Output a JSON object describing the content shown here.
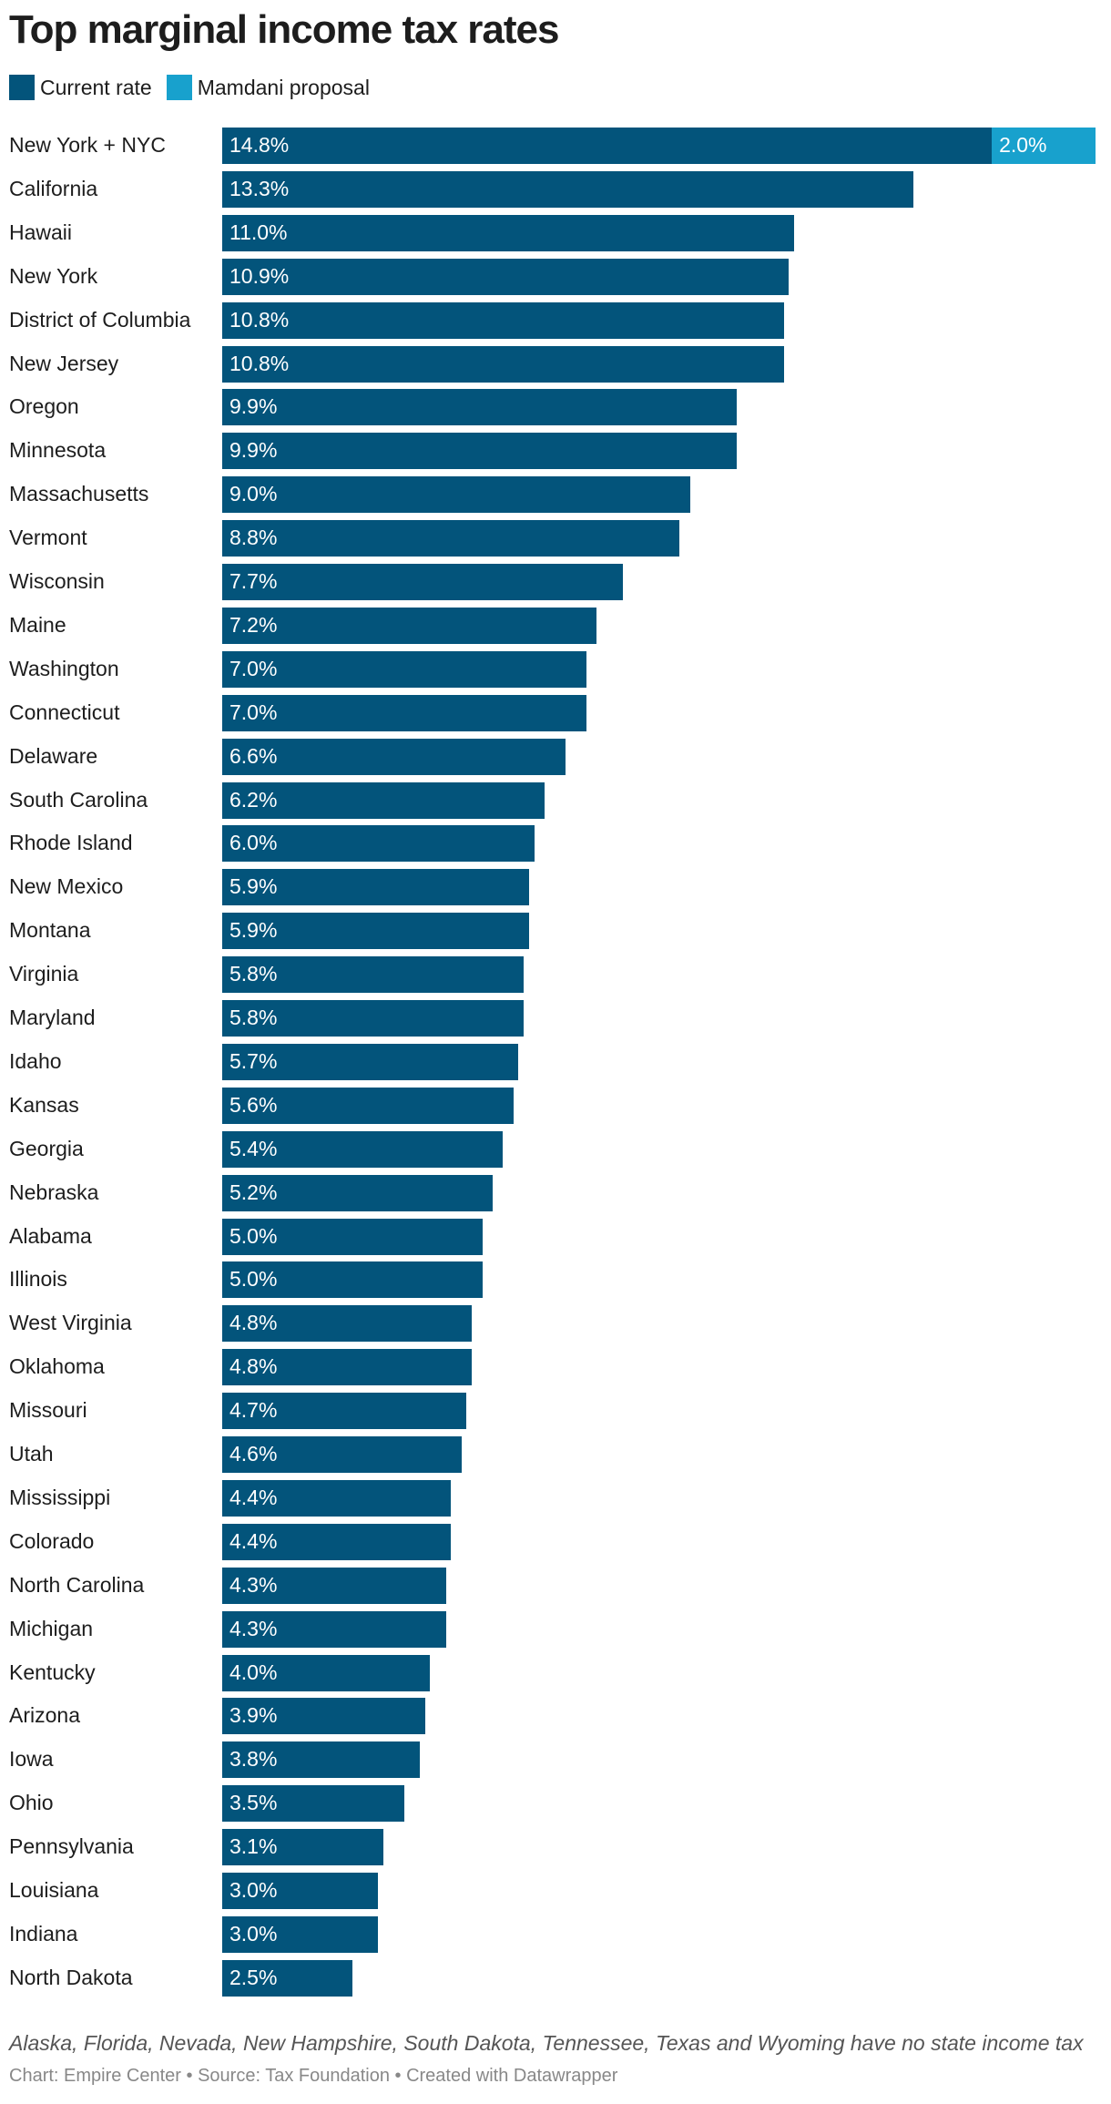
{
  "chart_data": {
    "type": "bar",
    "orientation": "horizontal",
    "stacked": true,
    "title": "Top marginal income tax rates",
    "legend_placement": "top-left",
    "grid": false,
    "unit": "%",
    "categories": [
      "New York + NYC",
      "California",
      "Hawaii",
      "New York",
      "District of Columbia",
      "New Jersey",
      "Oregon",
      "Minnesota",
      "Massachusetts",
      "Vermont",
      "Wisconsin",
      "Maine",
      "Washington",
      "Connecticut",
      "Delaware",
      "South Carolina",
      "Rhode Island",
      "New Mexico",
      "Montana",
      "Virginia",
      "Maryland",
      "Idaho",
      "Kansas",
      "Georgia",
      "Nebraska",
      "Alabama",
      "Illinois",
      "West Virginia",
      "Oklahoma",
      "Missouri",
      "Utah",
      "Mississippi",
      "Colorado",
      "North Carolina",
      "Michigan",
      "Kentucky",
      "Arizona",
      "Iowa",
      "Ohio",
      "Pennsylvania",
      "Louisiana",
      "Indiana",
      "North Dakota"
    ],
    "series": [
      {
        "name": "Current rate",
        "color": "#03547b",
        "values": [
          14.8,
          13.3,
          11.0,
          10.9,
          10.8,
          10.8,
          9.9,
          9.9,
          9.0,
          8.8,
          7.7,
          7.2,
          7.0,
          7.0,
          6.6,
          6.2,
          6.0,
          5.9,
          5.9,
          5.8,
          5.8,
          5.7,
          5.6,
          5.4,
          5.2,
          5.0,
          5.0,
          4.8,
          4.8,
          4.7,
          4.6,
          4.4,
          4.4,
          4.3,
          4.3,
          4.0,
          3.9,
          3.8,
          3.5,
          3.1,
          3.0,
          3.0,
          2.5
        ]
      },
      {
        "name": "Mamdani proposal",
        "color": "#18a1cd",
        "values": [
          2.0,
          null,
          null,
          null,
          null,
          null,
          null,
          null,
          null,
          null,
          null,
          null,
          null,
          null,
          null,
          null,
          null,
          null,
          null,
          null,
          null,
          null,
          null,
          null,
          null,
          null,
          null,
          null,
          null,
          null,
          null,
          null,
          null,
          null,
          null,
          null,
          null,
          null,
          null,
          null,
          null,
          null,
          null
        ]
      }
    ],
    "note": "Alaska, Florida, Nevada, New Hampshire, South Dakota, Tennessee, Texas and Wyoming have no state income tax",
    "credit": "Chart: Empire Center • Source: Tax Foundation • Created with Datawrapper"
  }
}
